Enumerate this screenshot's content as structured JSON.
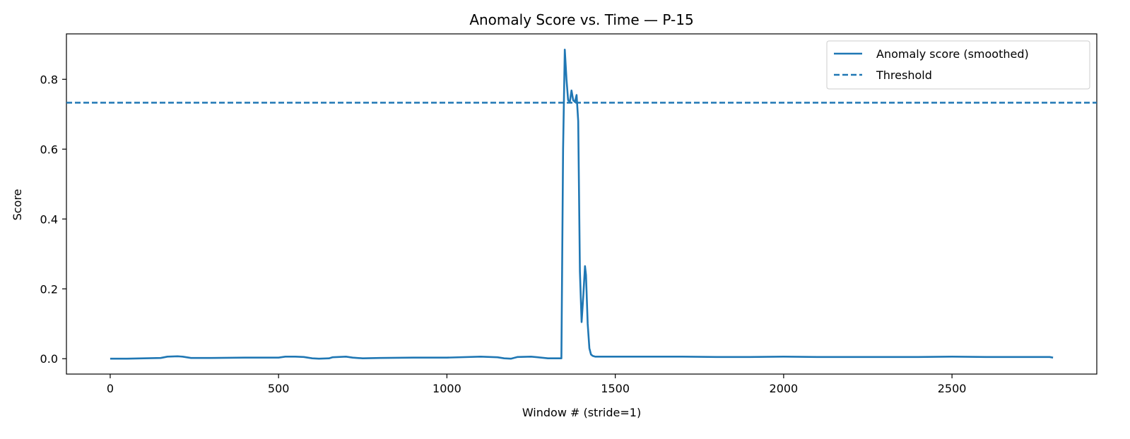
{
  "chart_data": {
    "type": "line",
    "title": "Anomaly Score vs. Time — P-15",
    "xlabel": "Window # (stride=1)",
    "ylabel": "Score",
    "xlim": [
      -130,
      2930
    ],
    "ylim": [
      -0.044,
      0.93
    ],
    "xticks": [
      0,
      500,
      1000,
      1500,
      2000,
      2500
    ],
    "yticks": [
      0.0,
      0.2,
      0.4,
      0.6,
      0.8
    ],
    "ytick_labels": [
      "0.0",
      "0.2",
      "0.4",
      "0.6",
      "0.8"
    ],
    "grid": false,
    "legend_position": "top-right",
    "color": "#1f77b4",
    "series": [
      {
        "name": "Anomaly score (smoothed)",
        "style": "solid",
        "x": [
          0,
          50,
          100,
          150,
          170,
          200,
          215,
          240,
          300,
          400,
          500,
          520,
          550,
          575,
          600,
          620,
          650,
          660,
          700,
          720,
          750,
          800,
          900,
          1000,
          1100,
          1150,
          1170,
          1190,
          1210,
          1250,
          1270,
          1300,
          1340,
          1345,
          1350,
          1355,
          1360,
          1365,
          1370,
          1375,
          1380,
          1385,
          1390,
          1395,
          1400,
          1405,
          1410,
          1413,
          1418,
          1423,
          1428,
          1433,
          1440,
          1500,
          1600,
          1700,
          1800,
          1900,
          2000,
          2100,
          2200,
          2300,
          2400,
          2500,
          2600,
          2700,
          2790,
          2800
        ],
        "y": [
          0.0,
          0.0,
          0.001,
          0.002,
          0.006,
          0.007,
          0.006,
          0.002,
          0.002,
          0.003,
          0.003,
          0.006,
          0.006,
          0.005,
          0.001,
          0.0,
          0.001,
          0.004,
          0.006,
          0.003,
          0.001,
          0.002,
          0.003,
          0.003,
          0.006,
          0.004,
          0.001,
          0.0,
          0.005,
          0.006,
          0.004,
          0.001,
          0.001,
          0.6,
          0.885,
          0.8,
          0.74,
          0.735,
          0.768,
          0.74,
          0.735,
          0.755,
          0.68,
          0.25,
          0.105,
          0.18,
          0.265,
          0.24,
          0.1,
          0.03,
          0.012,
          0.008,
          0.006,
          0.006,
          0.006,
          0.006,
          0.005,
          0.005,
          0.006,
          0.005,
          0.005,
          0.005,
          0.005,
          0.006,
          0.005,
          0.005,
          0.005,
          0.003
        ]
      },
      {
        "name": "Threshold",
        "style": "dashed",
        "value": 0.733
      }
    ]
  }
}
